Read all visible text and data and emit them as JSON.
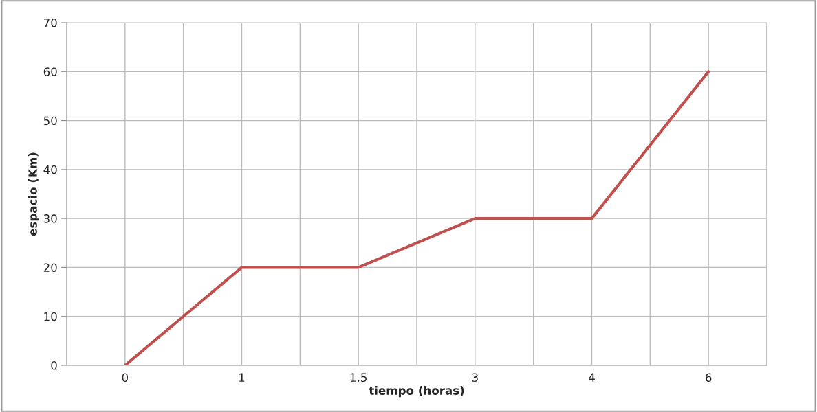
{
  "chart_data": {
    "type": "line",
    "xlabel": "tiempo (horas)",
    "ylabel": "espacio (Km)",
    "categories": [
      "0",
      "1",
      "1,5",
      "3",
      "4",
      "6"
    ],
    "series": [
      {
        "color": "#c0504d",
        "values": [
          0,
          20,
          20,
          30,
          30,
          60
        ]
      }
    ],
    "ylim": [
      0,
      70
    ],
    "yticks": [
      0,
      10,
      20,
      30,
      40,
      50,
      60,
      70
    ],
    "grid": true,
    "marker": "none",
    "line_style": "solid"
  }
}
